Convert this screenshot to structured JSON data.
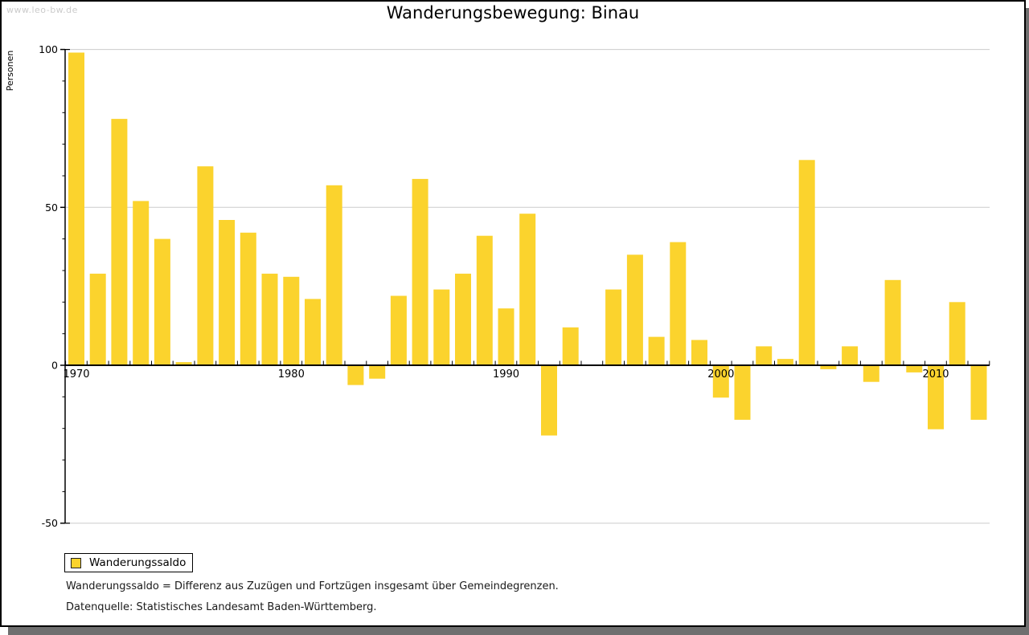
{
  "watermark": "www.leo-bw.de",
  "title": "Wanderungsbewegung: Binau",
  "y_axis_label": "Personen",
  "legend": {
    "label": "Wanderungssaldo"
  },
  "footnotes": {
    "definition": "Wanderungssaldo = Differenz aus Zuzügen und Fortzügen insgesamt über Gemeindegrenzen.",
    "source": "Datenquelle: Statistisches Landesamt Baden-Württemberg."
  },
  "colors": {
    "bar": "#FBD32D",
    "grid": "#CCCCCC",
    "axis": "#000000",
    "watermark": "#CBCBCB",
    "frame_shadow": "#6F6F6F"
  },
  "chart_data": {
    "type": "bar",
    "title": "Wanderungsbewegung: Binau",
    "xlabel": "",
    "ylabel": "Personen",
    "series": [
      {
        "name": "Wanderungssaldo",
        "color": "#FBD32D"
      }
    ],
    "x": [
      1970,
      1971,
      1972,
      1973,
      1974,
      1975,
      1976,
      1977,
      1978,
      1979,
      1980,
      1981,
      1982,
      1983,
      1984,
      1985,
      1986,
      1987,
      1988,
      1989,
      1990,
      1991,
      1992,
      1993,
      1994,
      1995,
      1996,
      1997,
      1998,
      1999,
      2000,
      2001,
      2002,
      2003,
      2004,
      2005,
      2006,
      2007,
      2008,
      2009,
      2010,
      2011,
      2012
    ],
    "values": [
      99,
      29,
      78,
      52,
      40,
      1,
      63,
      46,
      42,
      29,
      28,
      21,
      57,
      -6,
      -4,
      22,
      59,
      24,
      29,
      41,
      18,
      48,
      -22,
      12,
      0,
      24,
      35,
      9,
      39,
      8,
      -10,
      -17,
      6,
      2,
      65,
      -1,
      6,
      -5,
      27,
      -2,
      -20,
      20,
      -17
    ],
    "ylim": [
      -50,
      100
    ],
    "ytick_labels": [
      100,
      50,
      0,
      -50
    ],
    "ytick_minor_step": 10,
    "xtick_labels": [
      1970,
      1980,
      1990,
      2000,
      2010
    ],
    "grid_values": [
      100,
      50,
      -50
    ],
    "grid": true,
    "legend_position": "bottom-left"
  }
}
